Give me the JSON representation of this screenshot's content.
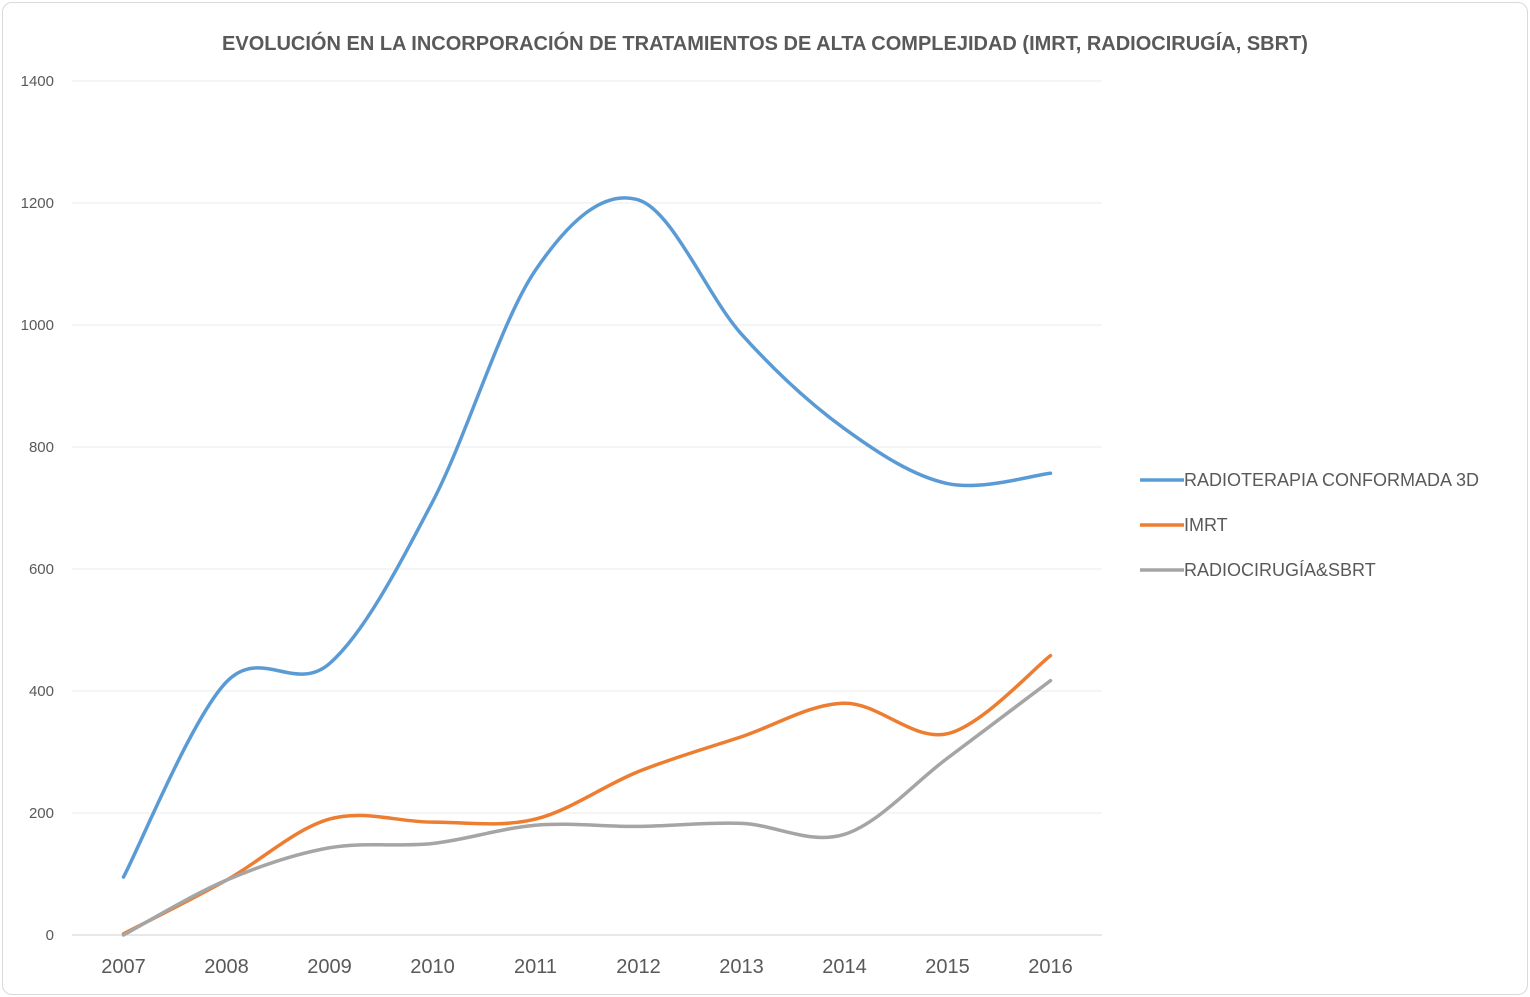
{
  "chart_data": {
    "type": "line",
    "title": "EVOLUCIÓN EN LA INCORPORACIÓN DE TRATAMIENTOS DE ALTA COMPLEJIDAD (IMRT, RADIOCIRUGÍA, SBRT)",
    "xlabel": "",
    "ylabel": "",
    "categories": [
      "2007",
      "2008",
      "2009",
      "2010",
      "2011",
      "2012",
      "2013",
      "2014",
      "2015",
      "2016"
    ],
    "yticks": [
      0,
      200,
      400,
      600,
      800,
      1000,
      1200,
      1400
    ],
    "ylim": [
      0,
      1400
    ],
    "grid": true,
    "smooth": true,
    "legend_position": "right",
    "series": [
      {
        "name": "RADIOTERAPIA CONFORMADA 3D",
        "color": "#5b9bd5",
        "values": [
          95,
          415,
          445,
          710,
          1090,
          1205,
          985,
          830,
          740,
          757
        ]
      },
      {
        "name": "IMRT",
        "color": "#ed7d31",
        "values": [
          2,
          90,
          190,
          185,
          190,
          268,
          325,
          380,
          330,
          458
        ]
      },
      {
        "name": "RADIOCIRUGÍA&SBRT",
        "color": "#a5a5a5",
        "values": [
          0,
          90,
          143,
          150,
          180,
          178,
          183,
          165,
          290,
          417
        ]
      }
    ]
  }
}
